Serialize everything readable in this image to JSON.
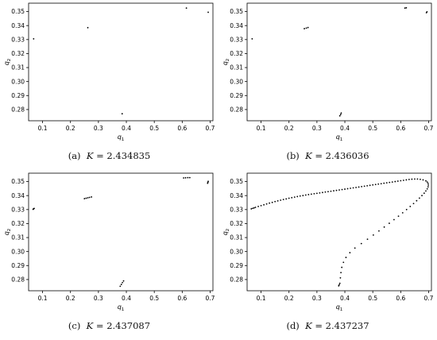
{
  "chart_data": [
    {
      "type": "scatter",
      "caption": {
        "label": "(a)",
        "kvar": "K",
        "eq": "= 2.434835"
      },
      "xlabel": "q1",
      "ylabel": "q2",
      "xlim": [
        0.05,
        0.71
      ],
      "ylim": [
        0.272,
        0.356
      ],
      "xticks": [
        "0.1",
        "0.2",
        "0.3",
        "0.4",
        "0.5",
        "0.6",
        "0.7"
      ],
      "yticks": [
        "0.28",
        "0.29",
        "0.30",
        "0.31",
        "0.32",
        "0.33",
        "0.34",
        "0.35"
      ],
      "x": [
        0.068,
        0.262,
        0.385,
        0.615,
        0.693
      ],
      "y": [
        0.3305,
        0.3385,
        0.277,
        0.3525,
        0.3495
      ]
    },
    {
      "type": "scatter",
      "caption": {
        "label": "(b)",
        "kvar": "K",
        "eq": "= 2.436036"
      },
      "xlabel": "q1",
      "ylabel": "q2",
      "xlim": [
        0.05,
        0.71
      ],
      "ylim": [
        0.272,
        0.356
      ],
      "xticks": [
        "0.1",
        "0.2",
        "0.3",
        "0.4",
        "0.5",
        "0.6",
        "0.7"
      ],
      "yticks": [
        "0.28",
        "0.29",
        "0.30",
        "0.31",
        "0.32",
        "0.33",
        "0.34",
        "0.35"
      ],
      "x": [
        0.068,
        0.255,
        0.262,
        0.268,
        0.382,
        0.385,
        0.387,
        0.615,
        0.62,
        0.692,
        0.694
      ],
      "y": [
        0.3305,
        0.3378,
        0.3382,
        0.3386,
        0.2755,
        0.2765,
        0.2775,
        0.3525,
        0.3527,
        0.3492,
        0.3498
      ]
    },
    {
      "type": "scatter",
      "caption": {
        "label": "(c)",
        "kvar": "K",
        "eq": "= 2.437087"
      },
      "xlabel": "q1",
      "ylabel": "q2",
      "xlim": [
        0.05,
        0.71
      ],
      "ylim": [
        0.272,
        0.356
      ],
      "xticks": [
        "0.1",
        "0.2",
        "0.3",
        "0.4",
        "0.5",
        "0.6",
        "0.7"
      ],
      "yticks": [
        "0.28",
        "0.29",
        "0.30",
        "0.31",
        "0.32",
        "0.33",
        "0.34",
        "0.35"
      ],
      "x": [
        0.066,
        0.068,
        0.07,
        0.25,
        0.256,
        0.262,
        0.268,
        0.275,
        0.378,
        0.382,
        0.386,
        0.39,
        0.605,
        0.612,
        0.62,
        0.627,
        0.691,
        0.692,
        0.693
      ],
      "y": [
        0.3302,
        0.3305,
        0.3308,
        0.3378,
        0.3381,
        0.3384,
        0.3387,
        0.339,
        0.2752,
        0.2765,
        0.2778,
        0.279,
        0.3526,
        0.3527,
        0.3528,
        0.3528,
        0.3488,
        0.3495,
        0.3502
      ]
    },
    {
      "type": "scatter",
      "caption": {
        "label": "(d)",
        "kvar": "K",
        "eq": "= 2.437237"
      },
      "xlabel": "q1",
      "ylabel": "q2",
      "xlim": [
        0.05,
        0.71
      ],
      "ylim": [
        0.272,
        0.356
      ],
      "xticks": [
        "0.1",
        "0.2",
        "0.3",
        "0.4",
        "0.5",
        "0.6",
        "0.7"
      ],
      "yticks": [
        "0.28",
        "0.29",
        "0.30",
        "0.31",
        "0.32",
        "0.33",
        "0.34",
        "0.35"
      ],
      "x": [
        0.065,
        0.07,
        0.075,
        0.08,
        0.09,
        0.1,
        0.11,
        0.12,
        0.13,
        0.14,
        0.15,
        0.16,
        0.17,
        0.18,
        0.19,
        0.2,
        0.21,
        0.22,
        0.23,
        0.24,
        0.25,
        0.26,
        0.27,
        0.28,
        0.29,
        0.3,
        0.31,
        0.32,
        0.33,
        0.34,
        0.35,
        0.36,
        0.37,
        0.38,
        0.39,
        0.4,
        0.41,
        0.42,
        0.43,
        0.44,
        0.45,
        0.46,
        0.47,
        0.48,
        0.49,
        0.5,
        0.51,
        0.52,
        0.53,
        0.54,
        0.55,
        0.56,
        0.57,
        0.58,
        0.59,
        0.6,
        0.61,
        0.62,
        0.63,
        0.64,
        0.65,
        0.66,
        0.67,
        0.68,
        0.69,
        0.695,
        0.698,
        0.699,
        0.698,
        0.695,
        0.69,
        0.684,
        0.676,
        0.667,
        0.657,
        0.646,
        0.634,
        0.621,
        0.607,
        0.592,
        0.576,
        0.559,
        0.541,
        0.522,
        0.502,
        0.481,
        0.459,
        0.436,
        0.418,
        0.404,
        0.395,
        0.389,
        0.386,
        0.384,
        0.382,
        0.38,
        0.378
      ],
      "y": [
        0.3305,
        0.3309,
        0.3312,
        0.3316,
        0.3322,
        0.3328,
        0.3334,
        0.334,
        0.3346,
        0.3351,
        0.3357,
        0.3362,
        0.3367,
        0.3372,
        0.3376,
        0.3381,
        0.3385,
        0.3389,
        0.3393,
        0.3397,
        0.34,
        0.3404,
        0.3407,
        0.341,
        0.3413,
        0.3416,
        0.3419,
        0.3422,
        0.3425,
        0.3428,
        0.3431,
        0.3434,
        0.3437,
        0.344,
        0.3443,
        0.3446,
        0.3449,
        0.3452,
        0.3455,
        0.3458,
        0.3461,
        0.3464,
        0.3467,
        0.347,
        0.3473,
        0.3476,
        0.3479,
        0.3482,
        0.3485,
        0.3488,
        0.3491,
        0.3494,
        0.3497,
        0.35,
        0.3503,
        0.3506,
        0.3509,
        0.3512,
        0.3515,
        0.3517,
        0.3518,
        0.3518,
        0.3516,
        0.3512,
        0.3505,
        0.3497,
        0.3487,
        0.3475,
        0.3462,
        0.3448,
        0.3433,
        0.3417,
        0.34,
        0.3382,
        0.3363,
        0.3343,
        0.3322,
        0.33,
        0.3277,
        0.3253,
        0.3228,
        0.3202,
        0.3175,
        0.3147,
        0.3118,
        0.3088,
        0.3057,
        0.3025,
        0.2992,
        0.2958,
        0.2923,
        0.2887,
        0.285,
        0.2812,
        0.2773,
        0.2763,
        0.2755
      ]
    }
  ]
}
